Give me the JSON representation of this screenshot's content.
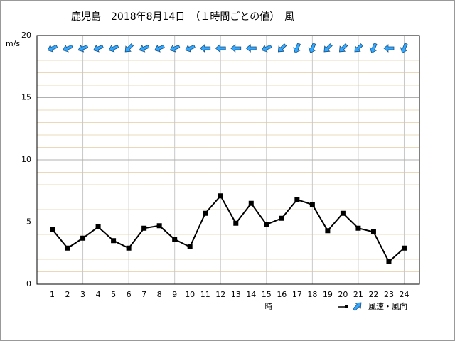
{
  "chart_data": {
    "type": "line",
    "title": "鹿児島　2018年8月14日　（１時間ごとの値）　風",
    "y_label": "m/s",
    "x_label": "時",
    "legend_label": "風速・風向",
    "categories": [
      "1",
      "2",
      "3",
      "4",
      "5",
      "6",
      "7",
      "8",
      "9",
      "10",
      "11",
      "12",
      "13",
      "14",
      "15",
      "16",
      "17",
      "18",
      "19",
      "20",
      "21",
      "22",
      "23",
      "24"
    ],
    "series": [
      {
        "name": "風速",
        "color": "#000000",
        "values": [
          4.4,
          2.9,
          3.7,
          4.6,
          3.5,
          2.9,
          4.5,
          4.7,
          3.6,
          3.0,
          5.7,
          7.1,
          4.9,
          6.5,
          4.8,
          5.3,
          6.8,
          6.4,
          4.3,
          5.7,
          4.5,
          4.2,
          1.8,
          2.9
        ]
      }
    ],
    "directions": [
      67.5,
      67.5,
      67.5,
      67.5,
      67.5,
      45,
      67.5,
      67.5,
      67.5,
      67.5,
      90,
      90,
      90,
      90,
      67.5,
      45,
      22.5,
      22.5,
      45,
      45,
      45,
      22.5,
      90,
      22.5
    ],
    "arrow_color": "#33aaff",
    "ylim": [
      0,
      20
    ],
    "yticks": [
      0,
      5,
      10,
      15,
      20
    ],
    "grid": true
  }
}
